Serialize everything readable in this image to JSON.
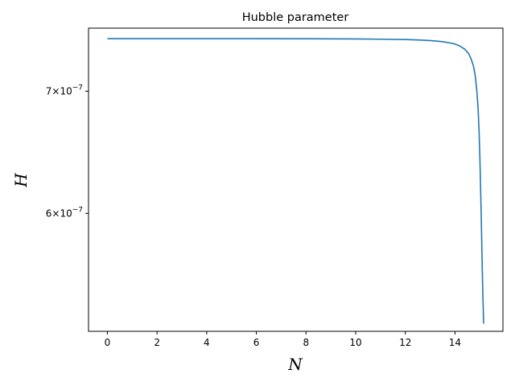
{
  "chart_data": {
    "type": "line",
    "title": "Hubble parameter",
    "xlabel": "N",
    "ylabel": "H",
    "yscale": "log",
    "xlim": [
      -0.76,
      15.93
    ],
    "ylim": [
      5.17e-07,
      7.58e-07
    ],
    "grid": false,
    "x_ticks": [
      0,
      2,
      4,
      6,
      8,
      10,
      12,
      14
    ],
    "y_ticks": [
      {
        "value": 7e-07,
        "mantissa": "7",
        "base": "10",
        "exponent": "−7"
      },
      {
        "value": 6e-07,
        "mantissa": "6",
        "base": "10",
        "exponent": "−7"
      }
    ],
    "series": [
      {
        "color": "#1f77b4",
        "x": [
          0,
          2,
          4,
          6,
          8,
          10,
          11,
          12,
          12.5,
          13,
          13.5,
          13.8,
          14,
          14.2,
          14.4,
          14.55,
          14.65,
          14.75,
          14.82,
          14.88,
          14.93,
          14.97,
          15.0,
          15.03,
          15.06,
          15.08,
          15.1,
          15.12,
          15.14,
          15.15
        ],
        "y": [
          7.48e-07,
          7.48e-07,
          7.48e-07,
          7.48e-07,
          7.479e-07,
          7.477e-07,
          7.475e-07,
          7.472e-07,
          7.468e-07,
          7.462e-07,
          7.452e-07,
          7.44e-07,
          7.43e-07,
          7.41e-07,
          7.38e-07,
          7.34e-07,
          7.29e-07,
          7.22e-07,
          7.13e-07,
          7e-07,
          6.85e-07,
          6.65e-07,
          6.45e-07,
          6.2e-07,
          5.95e-07,
          5.75e-07,
          5.58e-07,
          5.42e-07,
          5.3e-07,
          5.22e-07
        ]
      }
    ]
  }
}
